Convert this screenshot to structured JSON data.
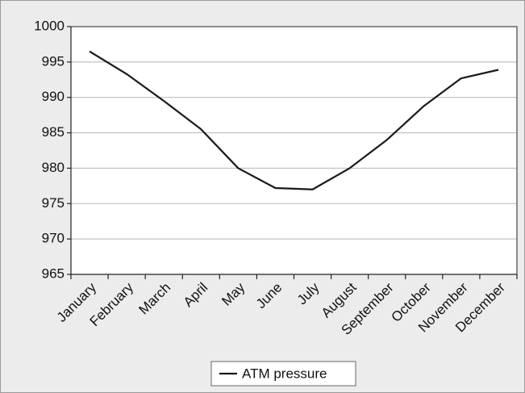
{
  "chart_data": {
    "type": "line",
    "categories": [
      "January",
      "February",
      "March",
      "April",
      "May",
      "June",
      "July",
      "August",
      "September",
      "October",
      "November",
      "December"
    ],
    "series": [
      {
        "name": "ATM pressure",
        "color": "#1a1a1a",
        "values": [
          996.5,
          993.3,
          989.5,
          985.5,
          980,
          977.2,
          977,
          980,
          984,
          988.8,
          992.7,
          993.9
        ]
      }
    ],
    "ylim": [
      965,
      1000
    ],
    "yticks": [
      965,
      970,
      975,
      980,
      985,
      990,
      995,
      1000
    ],
    "grid": true,
    "legend": "bottom"
  }
}
